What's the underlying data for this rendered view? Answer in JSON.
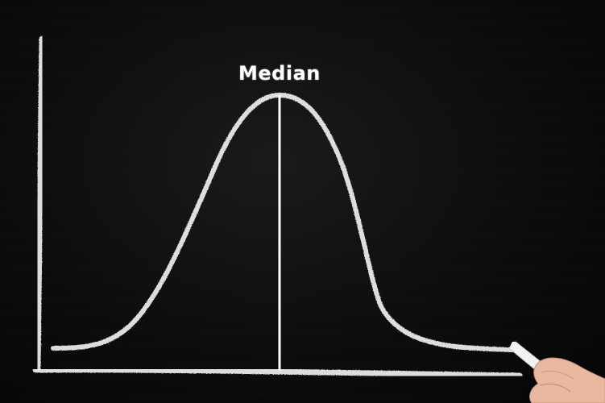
{
  "annotation": {
    "label": "Median"
  },
  "colors": {
    "board": "#0d0d0d",
    "chalk": "#e9e9e9",
    "median_line": "#ffffff",
    "skin": "#e8b9a0"
  },
  "icons": {
    "hand": "hand-holding-chalk-icon"
  }
}
